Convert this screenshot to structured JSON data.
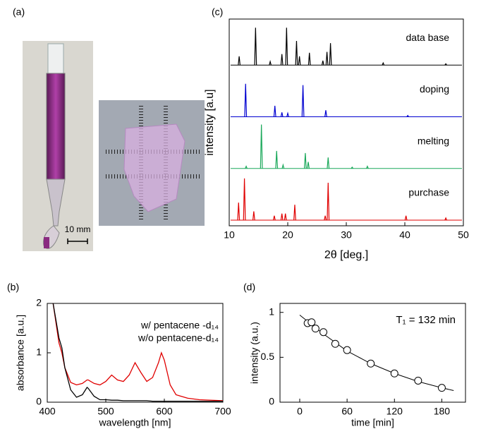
{
  "panel_labels": [
    "(a)",
    "(b)",
    "(c)",
    "(d)"
  ],
  "scale_bar": "10 mm",
  "chart_data": [
    {
      "type": "spectra",
      "xlabel": "2θ [deg.]",
      "ylabel": "intensity [a.u]",
      "xlim": [
        10,
        50
      ],
      "xticks": [
        10,
        20,
        30,
        40,
        50
      ],
      "series": [
        {
          "name": "data base",
          "color": "#000000",
          "x": [
            11.7,
            14.5,
            17,
            19,
            19.8,
            21.5,
            22,
            23.7,
            26,
            26.7,
            27.3,
            36.3,
            47
          ],
          "values": [
            0.2,
            0.85,
            0.08,
            0.25,
            0.85,
            0.55,
            0.2,
            0.28,
            0.1,
            0.3,
            0.5,
            0.05,
            0.03
          ]
        },
        {
          "name": "doping",
          "color": "#0000d0",
          "x": [
            12.8,
            17.8,
            19,
            20,
            22.6,
            26.5,
            40.5
          ],
          "values": [
            0.75,
            0.25,
            0.1,
            0.08,
            0.72,
            0.15,
            0.03
          ]
        },
        {
          "name": "melting",
          "color": "#1aa85a",
          "x": [
            12.9,
            15.5,
            18.1,
            19.2,
            23,
            23.5,
            26.9,
            31,
            33.6
          ],
          "values": [
            0.05,
            1.0,
            0.4,
            0.08,
            0.35,
            0.15,
            0.25,
            0.03,
            0.05
          ]
        },
        {
          "name": "purchase",
          "color": "#e00000",
          "x": [
            11.6,
            12.6,
            14.2,
            17.7,
            19,
            19.6,
            21.2,
            26.4,
            26.9,
            40.2,
            47
          ],
          "values": [
            0.4,
            0.95,
            0.2,
            0.1,
            0.15,
            0.15,
            0.35,
            0.1,
            0.85,
            0.1,
            0.05
          ]
        }
      ]
    },
    {
      "type": "line",
      "xlabel": "wavelength [nm]",
      "ylabel": "absorbance [a.u.]",
      "xlim": [
        400,
        700
      ],
      "xticks": [
        400,
        500,
        600,
        700
      ],
      "ylim": [
        0,
        2
      ],
      "yticks": [
        0,
        1,
        2
      ],
      "x": [
        410,
        420,
        425,
        430,
        440,
        450,
        460,
        468,
        470,
        480,
        490,
        500,
        510,
        520,
        530,
        540,
        550,
        560,
        570,
        580,
        590,
        595,
        600,
        610,
        620,
        640,
        660,
        700
      ],
      "series": [
        {
          "name": "w/ pentacene -d₁₄",
          "color": "#e00000",
          "values": [
            2,
            1.2,
            1.0,
            0.7,
            0.4,
            0.35,
            0.38,
            0.45,
            0.45,
            0.38,
            0.35,
            0.42,
            0.55,
            0.45,
            0.42,
            0.55,
            0.8,
            0.6,
            0.42,
            0.5,
            0.8,
            1.0,
            0.85,
            0.35,
            0.15,
            0.08,
            0.05,
            0.03
          ]
        },
        {
          "name": "w/o pentacene-d₁₄",
          "color": "#000000",
          "values": [
            2,
            1.3,
            1.1,
            0.7,
            0.25,
            0.1,
            0.15,
            0.3,
            0.28,
            0.12,
            0.05,
            0.05,
            0.04,
            0.04,
            0.03,
            0.03,
            0.03,
            0.03,
            0.03,
            0.02,
            0.02,
            0.02,
            0.02,
            0.02,
            0.02,
            0.02,
            0.02,
            0.02
          ]
        }
      ]
    },
    {
      "type": "scatter",
      "xlabel": "time [min]",
      "ylabel": "intensity (a.u.)",
      "annotation": "T₁ = 132 min",
      "xlim": [
        -25,
        210
      ],
      "xticks": [
        0,
        60,
        120,
        180
      ],
      "ylim": [
        0,
        1.1
      ],
      "yticks": [
        0,
        0.5,
        1
      ],
      "x": [
        10,
        15,
        20,
        30,
        45,
        60,
        90,
        120,
        150,
        180
      ],
      "values": [
        0.88,
        0.89,
        0.82,
        0.78,
        0.65,
        0.58,
        0.43,
        0.32,
        0.24,
        0.16
      ],
      "fit": {
        "x": [
          0,
          30,
          60,
          90,
          120,
          150,
          180,
          195
        ],
        "values": [
          0.97,
          0.76,
          0.57,
          0.43,
          0.32,
          0.23,
          0.16,
          0.13
        ]
      }
    }
  ]
}
